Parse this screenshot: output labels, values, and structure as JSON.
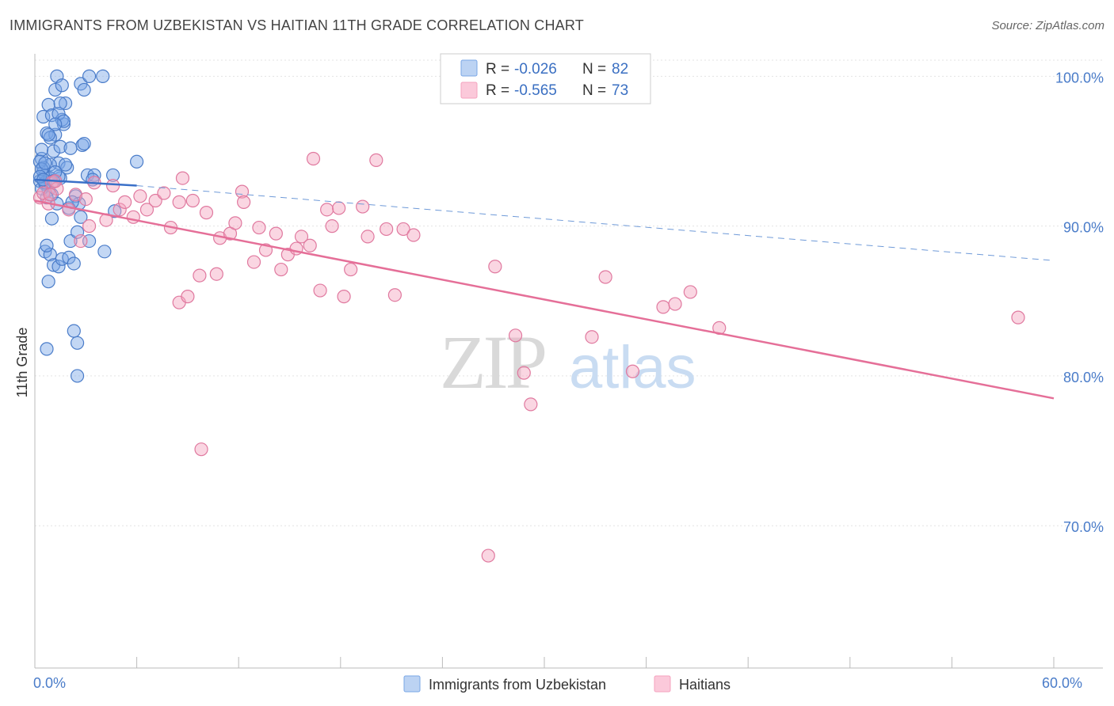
{
  "header": {
    "title": "IMMIGRANTS FROM UZBEKISTAN VS HAITIAN 11TH GRADE CORRELATION CHART",
    "source": "Source: ZipAtlas.com"
  },
  "watermark": {
    "zip": "ZIP",
    "atlas": "atlas"
  },
  "legend": {
    "rows": [
      {
        "r_label": "R = ",
        "r_value": "-0.026",
        "n_label": "N = ",
        "n_value": "82",
        "color": "#7aa7e6"
      },
      {
        "r_label": "R = ",
        "r_value": "-0.565",
        "n_label": "N = ",
        "n_value": "73",
        "color": "#f4a3bf"
      }
    ]
  },
  "chart_data": {
    "type": "scatter",
    "ylabel": "11th Grade",
    "xlim": [
      0,
      60
    ],
    "ylim": [
      60.5,
      101.5
    ],
    "x_ticks": [
      {
        "value": 0,
        "label": "0.0%"
      },
      {
        "value": 60,
        "label": "60.0%"
      }
    ],
    "y_ticks": [
      {
        "value": 100,
        "label": "100.0%"
      },
      {
        "value": 90,
        "label": "90.0%"
      },
      {
        "value": 80,
        "label": "80.0%"
      },
      {
        "value": 70,
        "label": "70.0%"
      }
    ],
    "grid": true,
    "legend_placement": "top-center",
    "series": [
      {
        "name": "Immigrants from Uzbekistan",
        "color": "#7aa7e6",
        "edge": "#4a7cc9",
        "trend": {
          "x0": 0,
          "y0": 93.1,
          "x1": 6.0,
          "y1": 92.7,
          "dash_to_x": 60,
          "dash_to_y": 87.7
        },
        "points": [
          [
            0.3,
            93.0
          ],
          [
            0.4,
            94.5
          ],
          [
            0.5,
            93.6
          ],
          [
            0.6,
            92.8
          ],
          [
            0.4,
            95.1
          ],
          [
            0.7,
            96.2
          ],
          [
            0.5,
            97.3
          ],
          [
            0.8,
            98.1
          ],
          [
            1.2,
            99.1
          ],
          [
            1.3,
            100.0
          ],
          [
            1.6,
            99.4
          ],
          [
            1.0,
            97.4
          ],
          [
            1.2,
            96.1
          ],
          [
            1.1,
            95.0
          ],
          [
            1.4,
            94.2
          ],
          [
            1.5,
            95.3
          ],
          [
            0.9,
            94.1
          ],
          [
            0.6,
            93.4
          ],
          [
            0.8,
            92.4
          ],
          [
            1.0,
            92.1
          ],
          [
            0.7,
            91.9
          ],
          [
            1.5,
            93.2
          ],
          [
            1.9,
            93.9
          ],
          [
            2.4,
            92.0
          ],
          [
            2.6,
            91.5
          ],
          [
            3.1,
            93.4
          ],
          [
            3.5,
            93.4
          ],
          [
            2.8,
            95.4
          ],
          [
            2.1,
            95.2
          ],
          [
            1.7,
            96.8
          ],
          [
            1.8,
            98.2
          ],
          [
            1.5,
            98.2
          ],
          [
            2.7,
            99.5
          ],
          [
            2.9,
            99.1
          ],
          [
            3.2,
            100.0
          ],
          [
            4.0,
            100.0
          ],
          [
            0.4,
            92.5
          ],
          [
            0.6,
            88.3
          ],
          [
            0.9,
            88.1
          ],
          [
            0.7,
            88.7
          ],
          [
            1.1,
            87.4
          ],
          [
            1.4,
            87.3
          ],
          [
            1.6,
            87.8
          ],
          [
            2.0,
            87.9
          ],
          [
            2.3,
            87.5
          ],
          [
            2.1,
            89.0
          ],
          [
            2.5,
            89.6
          ],
          [
            2.7,
            90.6
          ],
          [
            3.2,
            89.0
          ],
          [
            4.1,
            88.3
          ],
          [
            4.7,
            91.0
          ],
          [
            1.0,
            90.5
          ],
          [
            0.8,
            86.3
          ],
          [
            0.7,
            81.8
          ],
          [
            2.3,
            83.0
          ],
          [
            2.5,
            82.2
          ],
          [
            2.5,
            80.0
          ],
          [
            1.4,
            93.3
          ],
          [
            0.5,
            93.9
          ],
          [
            0.3,
            94.3
          ],
          [
            0.6,
            92.9
          ],
          [
            0.9,
            93.2
          ],
          [
            1.2,
            93.6
          ],
          [
            1.8,
            94.1
          ],
          [
            3.4,
            93.1
          ],
          [
            4.6,
            93.4
          ],
          [
            6.0,
            94.3
          ],
          [
            2.0,
            91.2
          ],
          [
            1.3,
            91.5
          ],
          [
            0.9,
            95.9
          ],
          [
            1.6,
            97.1
          ],
          [
            2.9,
            95.5
          ],
          [
            1.4,
            97.5
          ],
          [
            0.4,
            93.8
          ],
          [
            0.3,
            93.3
          ],
          [
            0.5,
            93.1
          ],
          [
            1.1,
            93.0
          ],
          [
            0.6,
            94.2
          ],
          [
            0.8,
            96.1
          ],
          [
            1.7,
            97.0
          ],
          [
            1.2,
            96.8
          ],
          [
            2.2,
            91.6
          ]
        ]
      },
      {
        "name": "Haitians",
        "color": "#f4a3bf",
        "edge": "#e0799f",
        "trend": {
          "x0": 0,
          "y0": 91.7,
          "x1": 60,
          "y1": 78.5
        },
        "points": [
          [
            0.3,
            91.9
          ],
          [
            0.5,
            92.2
          ],
          [
            0.8,
            91.5
          ],
          [
            1.0,
            92.9
          ],
          [
            1.3,
            92.5
          ],
          [
            2.0,
            91.1
          ],
          [
            2.4,
            92.1
          ],
          [
            2.7,
            89.0
          ],
          [
            3.0,
            91.8
          ],
          [
            3.2,
            90.0
          ],
          [
            3.5,
            92.9
          ],
          [
            4.2,
            90.4
          ],
          [
            4.6,
            92.7
          ],
          [
            5.0,
            91.1
          ],
          [
            5.3,
            91.6
          ],
          [
            5.8,
            90.6
          ],
          [
            6.2,
            92.0
          ],
          [
            6.6,
            91.1
          ],
          [
            7.1,
            91.7
          ],
          [
            7.6,
            92.2
          ],
          [
            8.0,
            89.9
          ],
          [
            8.5,
            91.6
          ],
          [
            8.7,
            93.2
          ],
          [
            9.3,
            91.7
          ],
          [
            10.1,
            90.9
          ],
          [
            10.9,
            89.2
          ],
          [
            11.5,
            89.5
          ],
          [
            11.8,
            90.2
          ],
          [
            12.2,
            92.3
          ],
          [
            12.3,
            91.6
          ],
          [
            12.9,
            87.6
          ],
          [
            13.2,
            89.9
          ],
          [
            13.6,
            88.4
          ],
          [
            14.2,
            89.5
          ],
          [
            14.5,
            87.1
          ],
          [
            14.9,
            88.1
          ],
          [
            15.4,
            88.5
          ],
          [
            15.7,
            89.3
          ],
          [
            16.2,
            88.7
          ],
          [
            16.4,
            94.5
          ],
          [
            16.8,
            85.7
          ],
          [
            17.2,
            91.1
          ],
          [
            17.5,
            90.0
          ],
          [
            17.9,
            91.2
          ],
          [
            18.2,
            85.3
          ],
          [
            18.6,
            87.1
          ],
          [
            19.3,
            91.3
          ],
          [
            19.6,
            89.3
          ],
          [
            20.1,
            94.4
          ],
          [
            20.7,
            89.8
          ],
          [
            21.2,
            85.4
          ],
          [
            21.7,
            89.8
          ],
          [
            22.3,
            89.4
          ],
          [
            8.5,
            84.9
          ],
          [
            9.0,
            85.3
          ],
          [
            9.7,
            86.7
          ],
          [
            10.7,
            86.8
          ],
          [
            27.1,
            87.3
          ],
          [
            28.3,
            82.7
          ],
          [
            28.8,
            80.2
          ],
          [
            29.2,
            78.1
          ],
          [
            32.8,
            82.6
          ],
          [
            33.6,
            86.6
          ],
          [
            35.2,
            80.3
          ],
          [
            37.0,
            84.6
          ],
          [
            37.7,
            84.8
          ],
          [
            38.6,
            85.6
          ],
          [
            40.3,
            83.2
          ],
          [
            57.9,
            83.9
          ],
          [
            9.8,
            75.1
          ],
          [
            26.7,
            68.0
          ],
          [
            1.2,
            93.0
          ],
          [
            0.9,
            92.1
          ]
        ]
      }
    ]
  }
}
